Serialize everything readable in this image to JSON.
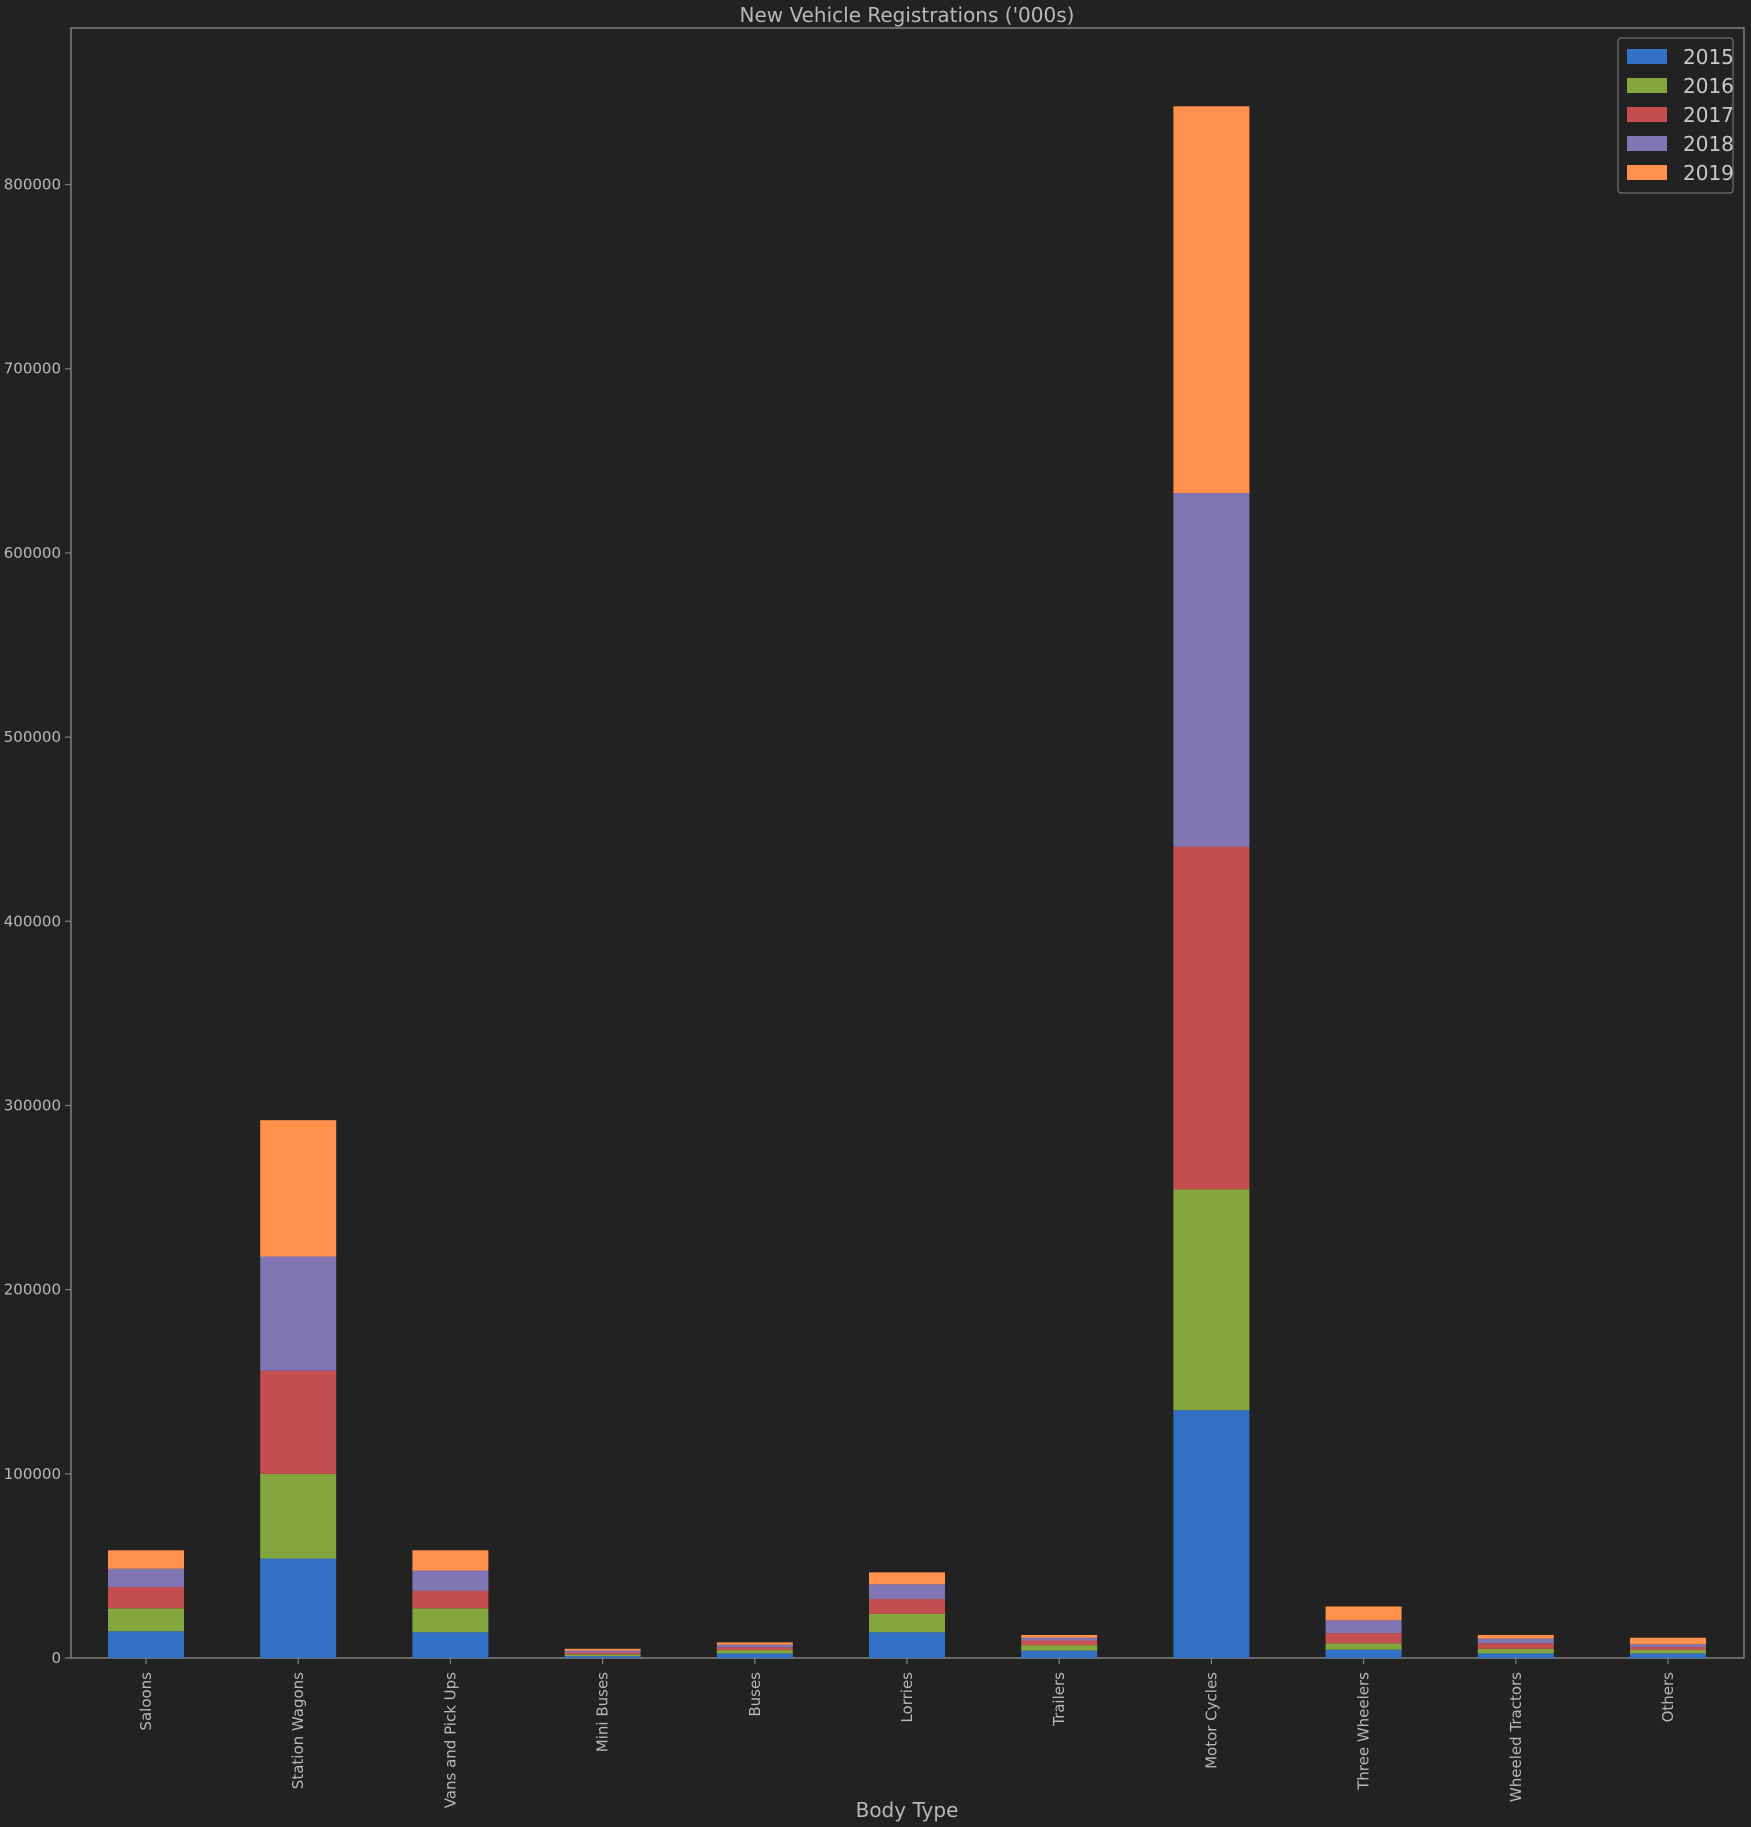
{
  "chart_data": {
    "type": "bar",
    "stacked": true,
    "title": "New Vehicle Registrations ('000s)",
    "xlabel": "Body Type",
    "ylabel": "",
    "ylim": [
      0,
      885000
    ],
    "yticks": [
      0,
      100000,
      200000,
      300000,
      400000,
      500000,
      600000,
      700000,
      800000
    ],
    "grid": false,
    "legend_position": "top-right",
    "categories": [
      "Saloons",
      "Station Wagons",
      "Vans and Pick Ups",
      "Mini Buses",
      "Buses",
      "Lorries",
      "Trailers",
      "Motor Cycles",
      "Three Wheelers",
      "Wheeled Tractors",
      "Others"
    ],
    "series": [
      {
        "name": "2015",
        "color": "#3371c6",
        "values": [
          14500,
          54000,
          14000,
          1000,
          2500,
          14000,
          4000,
          134500,
          4500,
          2500,
          2500
        ]
      },
      {
        "name": "2016",
        "color": "#83a63d",
        "values": [
          12500,
          46000,
          13000,
          1000,
          1800,
          10000,
          3000,
          120000,
          3500,
          2500,
          2000
        ]
      },
      {
        "name": "2017",
        "color": "#c54e50",
        "values": [
          11500,
          56000,
          9500,
          1000,
          1500,
          8000,
          2500,
          186000,
          5500,
          3000,
          1500
        ]
      },
      {
        "name": "2018",
        "color": "#8275b3",
        "values": [
          10000,
          62000,
          11000,
          1000,
          1400,
          8000,
          1500,
          192000,
          7000,
          2500,
          1500
        ]
      },
      {
        "name": "2019",
        "color": "#ff914d",
        "values": [
          10000,
          74000,
          11000,
          1000,
          1300,
          6500,
          1500,
          210000,
          7500,
          2000,
          3500
        ]
      }
    ]
  }
}
